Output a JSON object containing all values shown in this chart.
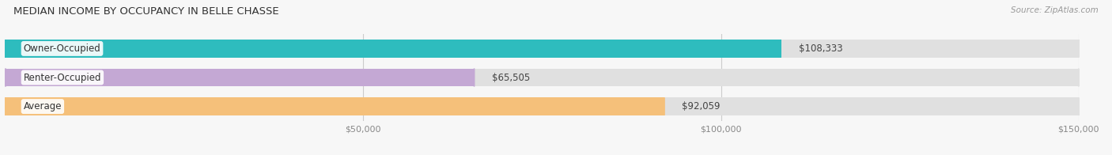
{
  "title": "MEDIAN INCOME BY OCCUPANCY IN BELLE CHASSE",
  "source": "Source: ZipAtlas.com",
  "categories": [
    "Owner-Occupied",
    "Renter-Occupied",
    "Average"
  ],
  "values": [
    108333,
    65505,
    92059
  ],
  "labels": [
    "$108,333",
    "$65,505",
    "$92,059"
  ],
  "bar_colors": [
    "#2ebcbe",
    "#c4a8d4",
    "#f5c07a"
  ],
  "xlim": [
    0,
    150000
  ],
  "xticks": [
    50000,
    100000,
    150000
  ],
  "xticklabels": [
    "$50,000",
    "$100,000",
    "$150,000"
  ],
  "figsize": [
    14.06,
    1.96
  ],
  "dpi": 100,
  "background_color": "#f7f7f7",
  "bar_height": 0.62,
  "title_fontsize": 9.5,
  "label_fontsize": 8.5,
  "tick_fontsize": 8,
  "source_fontsize": 7.5,
  "bar_bg_color": "#e0e0e0"
}
